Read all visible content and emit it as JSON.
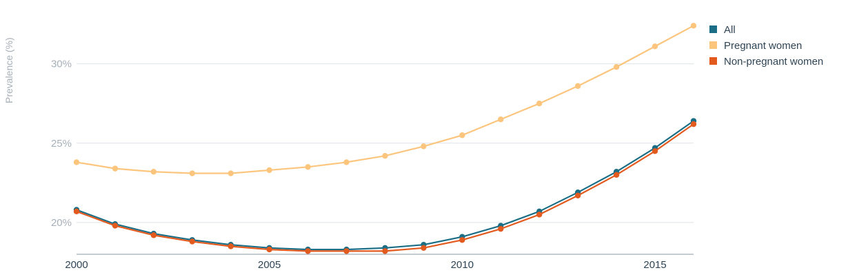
{
  "chart_data": {
    "type": "line",
    "title": "",
    "ylabel": "Prevalence (%)",
    "xlabel": "",
    "x": [
      2000,
      2001,
      2002,
      2003,
      2004,
      2005,
      2006,
      2007,
      2008,
      2009,
      2010,
      2011,
      2012,
      2013,
      2014,
      2015,
      2016
    ],
    "xticks": [
      2000,
      2005,
      2010,
      2015
    ],
    "xtick_labels": [
      "2000",
      "2005",
      "2010",
      "2015"
    ],
    "yticks": [
      20,
      25,
      30
    ],
    "ytick_labels": [
      "20%",
      "25%",
      "30%"
    ],
    "xlim": [
      2000,
      2016
    ],
    "ylim": [
      18,
      33.5
    ],
    "grid": "horizontal",
    "legend_position": "top-right",
    "series": [
      {
        "name": "All",
        "color": "#1b6e86",
        "values": [
          20.8,
          19.9,
          19.3,
          18.9,
          18.6,
          18.4,
          18.3,
          18.3,
          18.4,
          18.6,
          19.1,
          19.8,
          20.7,
          21.9,
          23.2,
          24.7,
          26.4
        ]
      },
      {
        "name": "Pregnant women",
        "color": "#fcc57d",
        "values": [
          23.8,
          23.4,
          23.2,
          23.1,
          23.1,
          23.3,
          23.5,
          23.8,
          24.2,
          24.8,
          25.5,
          26.5,
          27.5,
          28.6,
          29.8,
          31.1,
          32.4
        ]
      },
      {
        "name": "Non-pregnant women",
        "color": "#e35a1f",
        "values": [
          20.7,
          19.8,
          19.2,
          18.8,
          18.5,
          18.3,
          18.2,
          18.2,
          18.2,
          18.4,
          18.9,
          19.6,
          20.5,
          21.7,
          23.0,
          24.5,
          26.2
        ]
      }
    ]
  }
}
